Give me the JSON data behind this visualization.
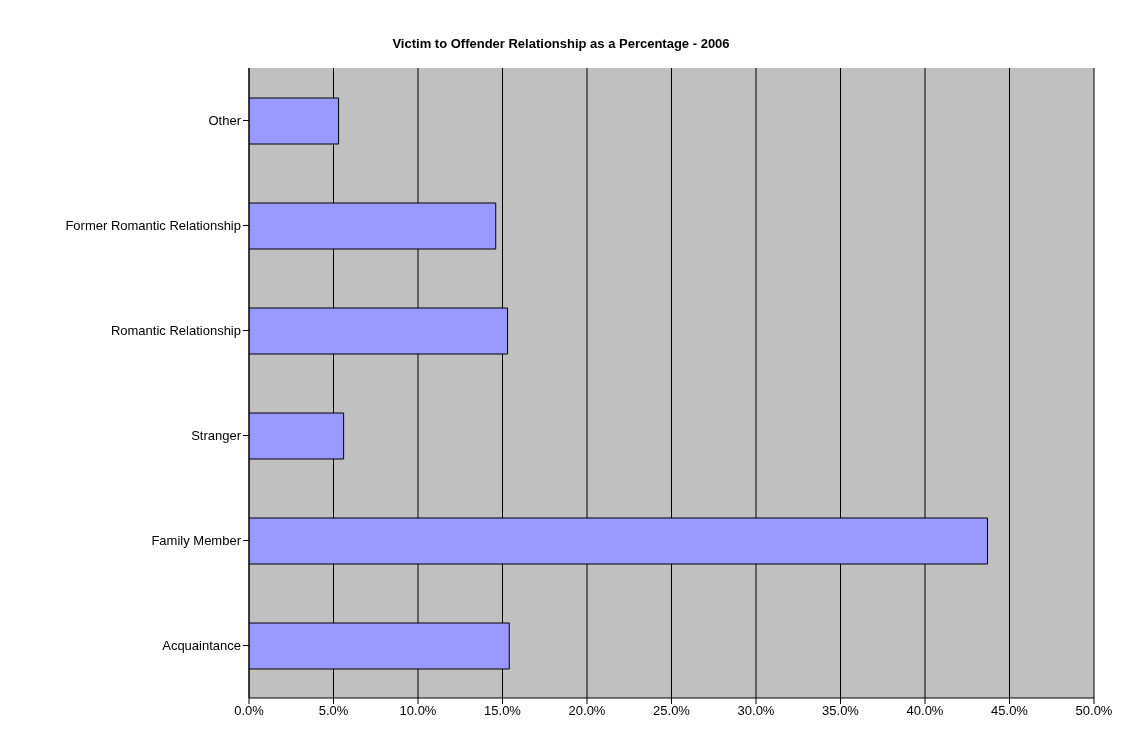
{
  "chart_data": {
    "type": "bar",
    "orientation": "horizontal",
    "title": "Victim to Offender Relationship as a Percentage - 2006",
    "categories": [
      "Other",
      "Former Romantic Relationship",
      "Romantic Relationship",
      "Stranger",
      "Family Member",
      "Acquaintance"
    ],
    "values": [
      5.3,
      14.6,
      15.3,
      5.6,
      43.7,
      15.4
    ],
    "color": "#9999ff",
    "xlim": [
      0,
      50
    ],
    "xticks": [
      {
        "value": 0,
        "label": "0.0%"
      },
      {
        "value": 5,
        "label": "5.0%"
      },
      {
        "value": 10,
        "label": "10.0%"
      },
      {
        "value": 15,
        "label": "15.0%"
      },
      {
        "value": 20,
        "label": "20.0%"
      },
      {
        "value": 25,
        "label": "25.0%"
      },
      {
        "value": 30,
        "label": "30.0%"
      },
      {
        "value": 35,
        "label": "35.0%"
      },
      {
        "value": 40,
        "label": "40.0%"
      },
      {
        "value": 45,
        "label": "45.0%"
      },
      {
        "value": 50,
        "label": "50.0%"
      }
    ],
    "grid": "x",
    "legend": false
  }
}
